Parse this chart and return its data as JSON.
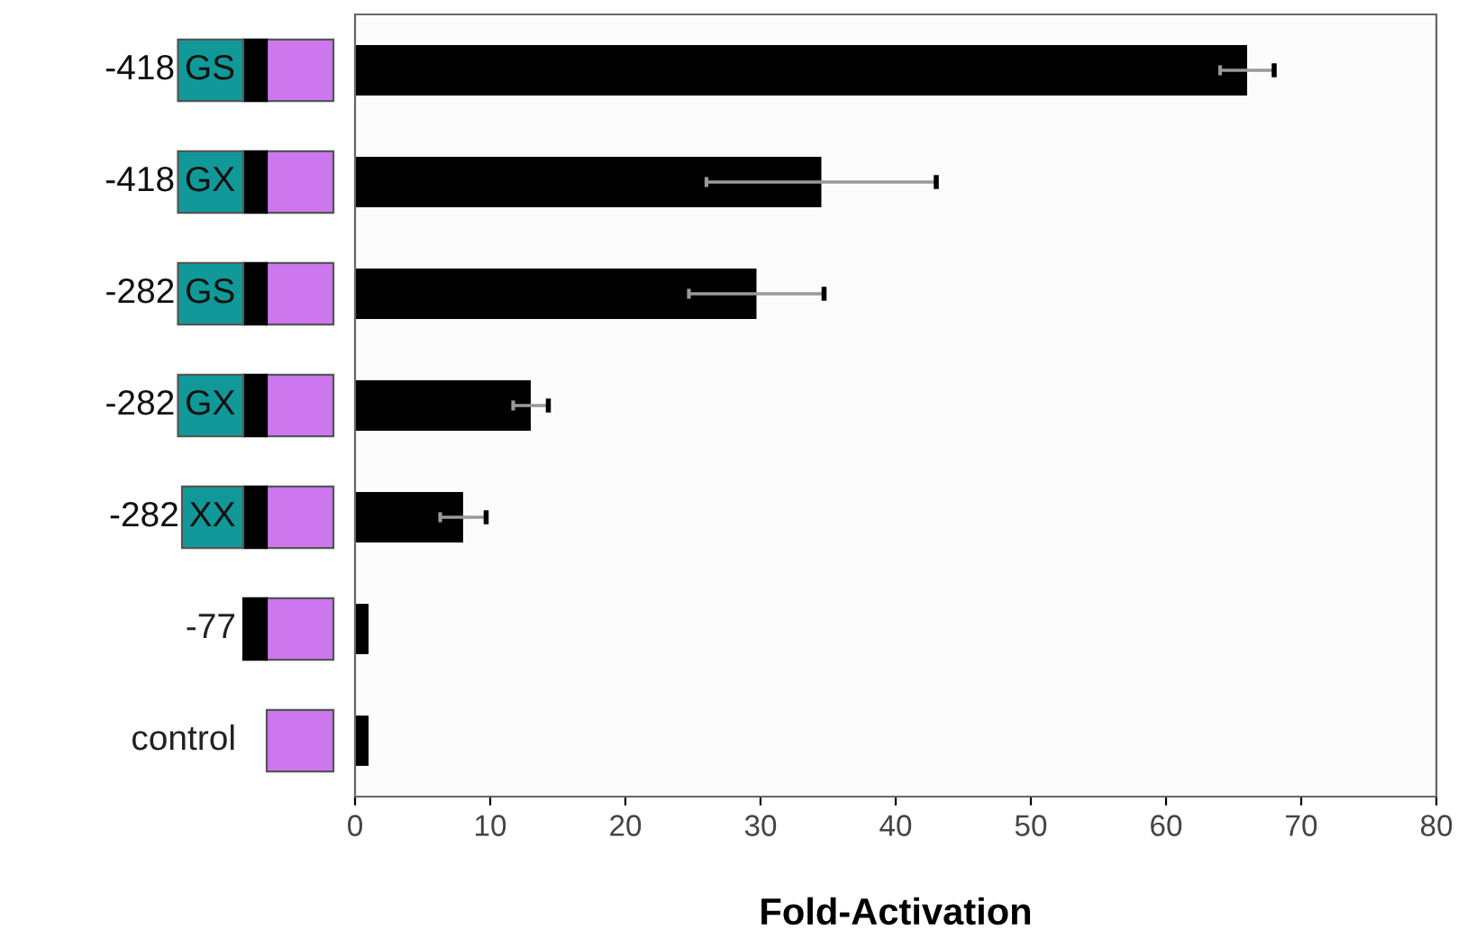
{
  "chart_data": {
    "type": "bar",
    "orientation": "horizontal",
    "xlabel": "Fold-Activation",
    "categories": [
      "-418 GS",
      "-418 GX",
      "-282 GS",
      "-282 GX",
      "-282 XX",
      "-77",
      "control"
    ],
    "values": [
      66,
      34.5,
      29.7,
      13,
      8,
      1,
      1
    ],
    "errors": [
      2,
      8.5,
      5,
      1.3,
      1.7,
      null,
      null
    ],
    "color": "#000000",
    "xlim": [
      0,
      80
    ],
    "xticks": [
      0,
      10,
      20,
      30,
      40,
      50,
      60,
      70,
      80
    ],
    "grid": false
  }
}
